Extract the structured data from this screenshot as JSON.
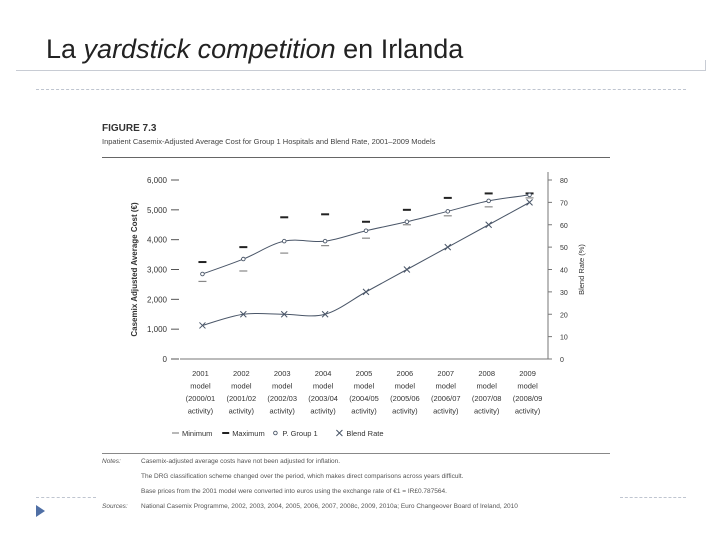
{
  "slide": {
    "title_pre": "La ",
    "title_em": "yardstick competition",
    "title_post": " en Irlanda"
  },
  "figure": {
    "label": "FIGURE 7.3",
    "subtitle": "Inpatient Casemix-Adjusted Average Cost for Group 1 Hospitals and Blend Rate, 2001–2009 Models"
  },
  "chart_data": {
    "type": "line",
    "categories": [
      [
        "2001",
        "model",
        "(2000/01",
        "activity)"
      ],
      [
        "2002",
        "model",
        "(2001/02",
        "activity)"
      ],
      [
        "2003",
        "model",
        "(2002/03",
        "activity)"
      ],
      [
        "2004",
        "model",
        "(2003/04",
        "activity)"
      ],
      [
        "2005",
        "model",
        "(2004/05",
        "activity)"
      ],
      [
        "2006",
        "model",
        "(2005/06",
        "activity)"
      ],
      [
        "2007",
        "model",
        "(2006/07",
        "activity)"
      ],
      [
        "2008",
        "model",
        "(2007/08",
        "activity)"
      ],
      [
        "2009",
        "model",
        "(2008/09",
        "activity)"
      ]
    ],
    "ylabel": "Casemix Adjusted Average Cost (€)",
    "ylabel_right": "Blend Rate (%)",
    "ylim": [
      0,
      6000
    ],
    "y_ticks": [
      "0",
      "1,000",
      "2,000",
      "3,000",
      "4,000",
      "5,000",
      "6,000"
    ],
    "ylim_right": [
      0,
      80
    ],
    "y_ticks_right": [
      "0",
      "10",
      "20",
      "30",
      "40",
      "50",
      "60",
      "70",
      "80"
    ],
    "series": [
      {
        "name": "Minimum",
        "axis": "left",
        "marker": "dash-thin",
        "values": [
          2600,
          2950,
          3550,
          3800,
          4050,
          4500,
          4800,
          5100,
          5400
        ]
      },
      {
        "name": "Maximum",
        "axis": "left",
        "marker": "dash-thick",
        "values": [
          3250,
          3750,
          4750,
          4850,
          4600,
          5000,
          5400,
          5550,
          5550
        ]
      },
      {
        "name": "P. Group 1",
        "axis": "left",
        "marker": "circle",
        "values": [
          2850,
          3350,
          3950,
          3950,
          4300,
          4600,
          4950,
          5300,
          5500
        ]
      },
      {
        "name": "Blend Rate",
        "axis": "right",
        "marker": "x",
        "values": [
          15,
          20,
          20,
          20,
          30,
          40,
          50,
          60,
          70
        ]
      }
    ],
    "legend_position": "bottom",
    "grid": false
  },
  "notes": {
    "notes_label": "Notes:",
    "sources_label": "Sources:",
    "lines": [
      "Casemix-adjusted average costs have not been adjusted for inflation.",
      "The DRG classification scheme changed over the period, which makes direct comparisons across years difficult.",
      "Base prices from the 2001 model were converted into euros using the exchange rate of €1 = IR£0.787564."
    ],
    "source": "National Casemix Programme, 2002, 2003, 2004, 2005, 2006, 2007, 2008c, 2009, 2010a; Euro Changeover Board of Ireland, 2010"
  },
  "colors": {
    "line": "#4a5668",
    "accent": "#4f6fa5",
    "text": "#333333"
  }
}
